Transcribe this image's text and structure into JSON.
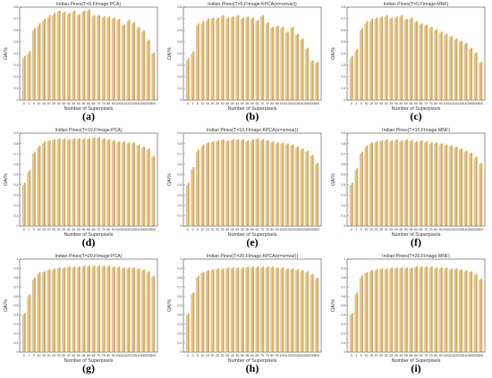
{
  "figure": {
    "series_colors": [
      "#c9c9c9",
      "#f0a92c"
    ]
  },
  "chart_data": [
    {
      "type": "bar",
      "caption": "(a)",
      "title": "Indian Pines(T=5,FImage:PCA)",
      "xlabel": "Number of Superpixels",
      "ylabel": "OA/%",
      "yticks": [
        0,
        0.1,
        0.2,
        0.3,
        0.4,
        0.5,
        0.6,
        0.7,
        0.8
      ],
      "ylim": [
        0,
        0.8
      ],
      "categories": [
        "0",
        "1",
        "5",
        "10",
        "15",
        "20",
        "25",
        "30",
        "35",
        "40",
        "45",
        "50",
        "55",
        "60",
        "65",
        "70",
        "75",
        "80",
        "90",
        "100",
        "110",
        "120",
        "130",
        "140",
        "150",
        "200",
        "300"
      ],
      "values": [
        0.36,
        0.4,
        0.6,
        0.64,
        0.68,
        0.71,
        0.73,
        0.76,
        0.75,
        0.74,
        0.76,
        0.73,
        0.76,
        0.77,
        0.72,
        0.72,
        0.71,
        0.71,
        0.7,
        0.69,
        0.64,
        0.68,
        0.66,
        0.62,
        0.59,
        0.51,
        0.4
      ],
      "values2": [
        0.38,
        0.42,
        0.62,
        0.66,
        0.7,
        0.73,
        0.75,
        0.77,
        0.76,
        0.75,
        0.77,
        0.74,
        0.77,
        0.78,
        0.73,
        0.73,
        0.72,
        0.72,
        0.71,
        0.7,
        0.65,
        0.69,
        0.67,
        0.63,
        0.6,
        0.52,
        0.41
      ]
    },
    {
      "type": "bar",
      "caption": "(b)",
      "title": "Indian Pines(T=5,FImage:KPCA(σ=smvar))",
      "xlabel": "Number of Superpixels",
      "ylabel": "OA/%",
      "yticks": [
        0,
        0.1,
        0.2,
        0.3,
        0.4,
        0.5,
        0.6,
        0.7,
        0.8
      ],
      "ylim": [
        0,
        0.8
      ],
      "categories": [
        "0",
        "1",
        "5",
        "10",
        "15",
        "20",
        "25",
        "30",
        "35",
        "40",
        "45",
        "50",
        "55",
        "60",
        "65",
        "70",
        "75",
        "80",
        "90",
        "100",
        "110",
        "120",
        "130",
        "140",
        "150",
        "200",
        "300"
      ],
      "values": [
        0.34,
        0.4,
        0.64,
        0.66,
        0.68,
        0.7,
        0.7,
        0.72,
        0.7,
        0.71,
        0.72,
        0.7,
        0.71,
        0.7,
        0.68,
        0.72,
        0.66,
        0.62,
        0.63,
        0.62,
        0.58,
        0.62,
        0.56,
        0.52,
        0.44,
        0.33,
        0.32
      ],
      "values2": [
        0.36,
        0.42,
        0.66,
        0.68,
        0.7,
        0.71,
        0.71,
        0.73,
        0.71,
        0.72,
        0.73,
        0.71,
        0.72,
        0.71,
        0.69,
        0.73,
        0.67,
        0.63,
        0.64,
        0.63,
        0.59,
        0.63,
        0.57,
        0.53,
        0.45,
        0.34,
        0.33
      ]
    },
    {
      "type": "bar",
      "caption": "(c)",
      "title": "Indian Pines(T=5,FImage:MNF)",
      "xlabel": "Number of Superpixels",
      "ylabel": "OA/%",
      "yticks": [
        0,
        0.1,
        0.2,
        0.3,
        0.4,
        0.5,
        0.6,
        0.7,
        0.8
      ],
      "ylim": [
        0,
        0.8
      ],
      "categories": [
        "0",
        "1",
        "5",
        "10",
        "15",
        "20",
        "25",
        "30",
        "35",
        "40",
        "45",
        "50",
        "55",
        "60",
        "65",
        "70",
        "75",
        "80",
        "90",
        "100",
        "110",
        "120",
        "130",
        "140",
        "150",
        "200",
        "300"
      ],
      "values": [
        0.36,
        0.42,
        0.6,
        0.66,
        0.68,
        0.7,
        0.71,
        0.72,
        0.7,
        0.71,
        0.72,
        0.69,
        0.7,
        0.67,
        0.65,
        0.64,
        0.62,
        0.6,
        0.58,
        0.56,
        0.54,
        0.52,
        0.5,
        0.48,
        0.44,
        0.4,
        0.32
      ],
      "values2": [
        0.38,
        0.44,
        0.62,
        0.68,
        0.7,
        0.71,
        0.72,
        0.73,
        0.71,
        0.72,
        0.73,
        0.7,
        0.71,
        0.68,
        0.66,
        0.65,
        0.63,
        0.61,
        0.59,
        0.57,
        0.55,
        0.53,
        0.51,
        0.49,
        0.45,
        0.41,
        0.33
      ]
    },
    {
      "type": "bar",
      "caption": "(d)",
      "title": "Indian Pines(T=10,FImage:PCA)",
      "xlabel": "Number of Superpixels",
      "ylabel": "OA/%",
      "yticks": [
        0,
        0.1,
        0.2,
        0.3,
        0.4,
        0.5,
        0.6,
        0.7,
        0.8,
        0.9
      ],
      "ylim": [
        0,
        0.9
      ],
      "categories": [
        "0",
        "1",
        "5",
        "10",
        "15",
        "20",
        "25",
        "30",
        "35",
        "40",
        "45",
        "50",
        "55",
        "60",
        "65",
        "70",
        "75",
        "80",
        "90",
        "100",
        "110",
        "120",
        "130",
        "140",
        "150",
        "200",
        "300"
      ],
      "values": [
        0.4,
        0.52,
        0.7,
        0.76,
        0.8,
        0.82,
        0.83,
        0.84,
        0.84,
        0.83,
        0.84,
        0.84,
        0.84,
        0.84,
        0.85,
        0.85,
        0.84,
        0.83,
        0.82,
        0.81,
        0.81,
        0.8,
        0.8,
        0.78,
        0.76,
        0.74,
        0.67
      ],
      "values2": [
        0.42,
        0.54,
        0.72,
        0.78,
        0.82,
        0.83,
        0.84,
        0.85,
        0.85,
        0.84,
        0.85,
        0.85,
        0.85,
        0.85,
        0.86,
        0.86,
        0.85,
        0.84,
        0.83,
        0.82,
        0.82,
        0.81,
        0.81,
        0.79,
        0.77,
        0.75,
        0.68
      ]
    },
    {
      "type": "bar",
      "caption": "(e)",
      "title": "Indian Pines(T=10,FImage:KPCA(σ=smvar))",
      "xlabel": "Number of Superpixels",
      "ylabel": "OA/%",
      "yticks": [
        0,
        0.1,
        0.2,
        0.3,
        0.4,
        0.5,
        0.6,
        0.7,
        0.8,
        0.9
      ],
      "ylim": [
        0,
        0.9
      ],
      "categories": [
        "0",
        "1",
        "5",
        "10",
        "15",
        "20",
        "25",
        "30",
        "35",
        "40",
        "45",
        "50",
        "55",
        "60",
        "65",
        "70",
        "75",
        "80",
        "90",
        "100",
        "110",
        "120",
        "130",
        "140",
        "150",
        "200",
        "300"
      ],
      "values": [
        0.4,
        0.55,
        0.72,
        0.77,
        0.8,
        0.81,
        0.82,
        0.83,
        0.82,
        0.83,
        0.83,
        0.83,
        0.82,
        0.83,
        0.84,
        0.83,
        0.82,
        0.81,
        0.8,
        0.8,
        0.79,
        0.78,
        0.76,
        0.74,
        0.72,
        0.68,
        0.6
      ],
      "values2": [
        0.42,
        0.57,
        0.74,
        0.79,
        0.81,
        0.82,
        0.83,
        0.84,
        0.83,
        0.84,
        0.84,
        0.84,
        0.83,
        0.84,
        0.85,
        0.84,
        0.83,
        0.82,
        0.81,
        0.81,
        0.8,
        0.79,
        0.77,
        0.75,
        0.73,
        0.69,
        0.61
      ]
    },
    {
      "type": "bar",
      "caption": "(f)",
      "title": "Indian Pines(T=10,FImage:MNF)",
      "xlabel": "Number of Superpixels",
      "ylabel": "OA/%",
      "yticks": [
        0,
        0.1,
        0.2,
        0.3,
        0.4,
        0.5,
        0.6,
        0.7,
        0.8,
        0.9
      ],
      "ylim": [
        0,
        0.9
      ],
      "categories": [
        "0",
        "1",
        "5",
        "10",
        "15",
        "20",
        "25",
        "30",
        "35",
        "40",
        "45",
        "50",
        "55",
        "60",
        "65",
        "70",
        "75",
        "80",
        "90",
        "100",
        "110",
        "120",
        "130",
        "140",
        "150",
        "200",
        "300"
      ],
      "values": [
        0.4,
        0.54,
        0.7,
        0.76,
        0.8,
        0.81,
        0.82,
        0.83,
        0.82,
        0.83,
        0.82,
        0.83,
        0.82,
        0.81,
        0.82,
        0.81,
        0.8,
        0.8,
        0.79,
        0.78,
        0.77,
        0.76,
        0.74,
        0.72,
        0.7,
        0.66,
        0.6
      ],
      "values2": [
        0.42,
        0.56,
        0.72,
        0.78,
        0.81,
        0.82,
        0.83,
        0.84,
        0.83,
        0.84,
        0.83,
        0.84,
        0.83,
        0.82,
        0.83,
        0.82,
        0.81,
        0.81,
        0.8,
        0.79,
        0.78,
        0.77,
        0.75,
        0.73,
        0.71,
        0.67,
        0.61
      ]
    },
    {
      "type": "bar",
      "caption": "(g)",
      "title": "Indian Pines(T=20,FImage:PCA)",
      "xlabel": "Number of Superpixels",
      "ylabel": "OA/%",
      "yticks": [
        0,
        0.1,
        0.2,
        0.3,
        0.4,
        0.5,
        0.6,
        0.7,
        0.8,
        0.9,
        1
      ],
      "ylim": [
        0,
        1
      ],
      "categories": [
        "0",
        "1",
        "5",
        "10",
        "15",
        "20",
        "25",
        "30",
        "35",
        "40",
        "45",
        "50",
        "55",
        "60",
        "65",
        "70",
        "75",
        "80",
        "90",
        "100",
        "110",
        "120",
        "130",
        "140",
        "150",
        "200",
        "300"
      ],
      "values": [
        0.4,
        0.6,
        0.78,
        0.84,
        0.86,
        0.88,
        0.89,
        0.9,
        0.9,
        0.91,
        0.91,
        0.91,
        0.92,
        0.92,
        0.92,
        0.92,
        0.92,
        0.92,
        0.91,
        0.91,
        0.9,
        0.9,
        0.9,
        0.89,
        0.88,
        0.86,
        0.81
      ],
      "values2": [
        0.42,
        0.62,
        0.8,
        0.86,
        0.87,
        0.89,
        0.9,
        0.91,
        0.91,
        0.92,
        0.92,
        0.92,
        0.93,
        0.93,
        0.93,
        0.93,
        0.93,
        0.93,
        0.92,
        0.92,
        0.91,
        0.91,
        0.91,
        0.9,
        0.89,
        0.87,
        0.82
      ]
    },
    {
      "type": "bar",
      "caption": "(h)",
      "title": "Indian Pines(T=20,FImage:KPCA(σ=smvar))",
      "xlabel": "Number of Superpixels",
      "ylabel": "OA/%",
      "yticks": [
        0,
        0.1,
        0.2,
        0.3,
        0.4,
        0.5,
        0.6,
        0.7,
        0.8,
        0.9,
        1
      ],
      "ylim": [
        0,
        1
      ],
      "categories": [
        "0",
        "1",
        "5",
        "10",
        "15",
        "20",
        "25",
        "30",
        "35",
        "40",
        "45",
        "50",
        "55",
        "60",
        "65",
        "70",
        "75",
        "80",
        "90",
        "100",
        "110",
        "120",
        "130",
        "140",
        "150",
        "200",
        "300"
      ],
      "values": [
        0.4,
        0.62,
        0.8,
        0.85,
        0.87,
        0.88,
        0.89,
        0.89,
        0.9,
        0.9,
        0.9,
        0.9,
        0.91,
        0.91,
        0.91,
        0.91,
        0.91,
        0.91,
        0.9,
        0.9,
        0.89,
        0.89,
        0.88,
        0.87,
        0.86,
        0.83,
        0.79
      ],
      "values2": [
        0.42,
        0.64,
        0.82,
        0.86,
        0.88,
        0.89,
        0.9,
        0.9,
        0.91,
        0.91,
        0.91,
        0.91,
        0.92,
        0.92,
        0.92,
        0.92,
        0.92,
        0.92,
        0.91,
        0.91,
        0.9,
        0.9,
        0.89,
        0.88,
        0.87,
        0.84,
        0.8
      ]
    },
    {
      "type": "bar",
      "caption": "(i)",
      "title": "Indian Pines(T=20,FImage:MNF)",
      "xlabel": "Number of Superpixels",
      "ylabel": "OA/%",
      "yticks": [
        0,
        0.1,
        0.2,
        0.3,
        0.4,
        0.5,
        0.6,
        0.7,
        0.8,
        0.9,
        1
      ],
      "ylim": [
        0,
        1
      ],
      "categories": [
        "0",
        "1",
        "5",
        "10",
        "15",
        "20",
        "25",
        "30",
        "35",
        "40",
        "45",
        "50",
        "55",
        "60",
        "65",
        "70",
        "75",
        "80",
        "90",
        "100",
        "110",
        "120",
        "130",
        "140",
        "150",
        "200",
        "300"
      ],
      "values": [
        0.4,
        0.62,
        0.8,
        0.85,
        0.87,
        0.88,
        0.89,
        0.89,
        0.9,
        0.9,
        0.9,
        0.9,
        0.9,
        0.91,
        0.91,
        0.91,
        0.91,
        0.9,
        0.9,
        0.9,
        0.89,
        0.89,
        0.88,
        0.87,
        0.86,
        0.83,
        0.78
      ],
      "values2": [
        0.42,
        0.64,
        0.82,
        0.86,
        0.88,
        0.89,
        0.9,
        0.9,
        0.91,
        0.91,
        0.91,
        0.91,
        0.91,
        0.92,
        0.92,
        0.92,
        0.92,
        0.91,
        0.91,
        0.91,
        0.9,
        0.9,
        0.89,
        0.88,
        0.87,
        0.84,
        0.79
      ]
    }
  ]
}
